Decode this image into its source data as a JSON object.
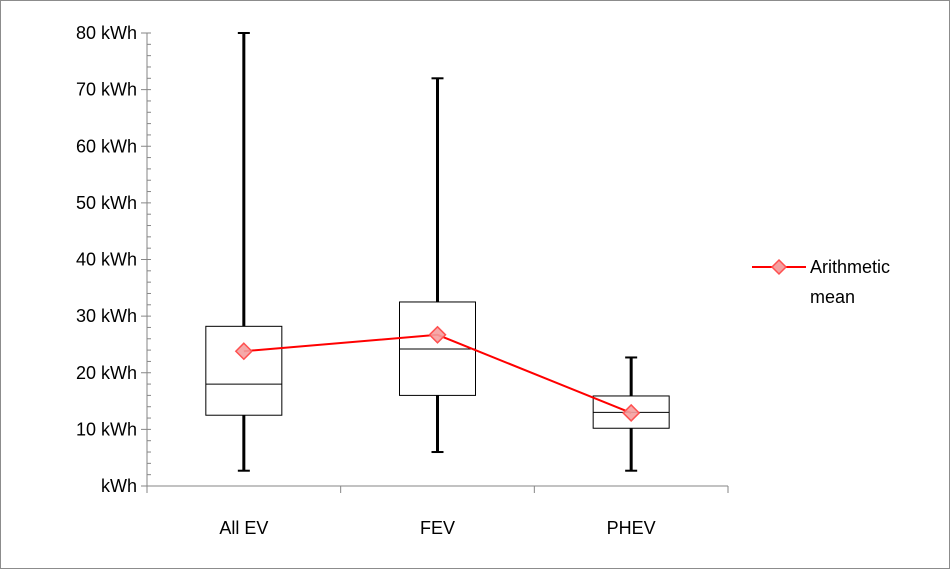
{
  "chart_data": {
    "type": "boxplot",
    "y_unit": "kWh",
    "ylim": [
      0,
      80
    ],
    "y_ticks": [
      0,
      10,
      20,
      30,
      40,
      50,
      60,
      70,
      80
    ],
    "y_tick_labels": [
      "kWh",
      "10 kWh",
      "20 kWh",
      "30 kWh",
      "40 kWh",
      "50 kWh",
      "60 kWh",
      "70 kWh",
      "80 kWh"
    ],
    "categories": [
      "All EV",
      "FEV",
      "PHEV"
    ],
    "boxes": [
      {
        "category": "All EV",
        "min": 2.7,
        "q1": 12.5,
        "median": 18.0,
        "q3": 28.2,
        "max": 80.0
      },
      {
        "category": "FEV",
        "min": 6.0,
        "q1": 16.0,
        "median": 24.2,
        "q3": 32.5,
        "max": 72.0
      },
      {
        "category": "PHEV",
        "min": 2.7,
        "q1": 10.2,
        "median": 13.0,
        "q3": 15.9,
        "max": 22.7
      }
    ],
    "series": [
      {
        "name": "Arithmetic mean",
        "values": [
          23.8,
          26.7,
          12.9
        ],
        "color": "#ff0000",
        "marker": "diamond"
      }
    ],
    "legend": {
      "position": "right",
      "lines": [
        "Arithmetic",
        "mean"
      ]
    },
    "grid": false
  }
}
